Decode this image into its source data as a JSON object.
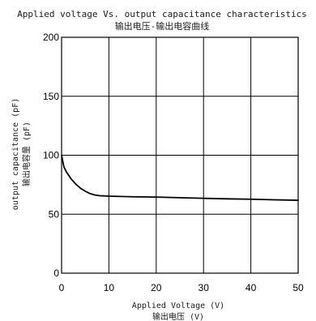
{
  "chart_data": {
    "type": "line",
    "title": "Applied voltage Vs. output capacitance characteristics",
    "subtitle": "输出电压-输出电容曲线",
    "xlabel": "Applied Voltage (V)",
    "xlabel_cn": "输出电压 (V)",
    "ylabel": "output capacitance (pF)",
    "ylabel_cn": "输出电容量 (pF)",
    "xlim": [
      0,
      50
    ],
    "ylim": [
      0,
      200
    ],
    "xticks": [
      0,
      10,
      20,
      30,
      40,
      50
    ],
    "yticks": [
      0,
      50,
      100,
      150,
      200
    ],
    "grid": true,
    "series": [
      {
        "x": [
          0,
          0.5,
          1,
          2,
          3,
          4,
          5,
          6,
          7,
          8,
          9,
          10,
          15,
          20,
          25,
          30,
          35,
          40,
          45,
          50
        ],
        "values": [
          100,
          90,
          86,
          80,
          75.5,
          72,
          69.5,
          67.5,
          66.3,
          65.7,
          65.5,
          65.3,
          64.8,
          64.5,
          64,
          63.5,
          63,
          62.7,
          62.2,
          61.8
        ]
      }
    ],
    "line_color": "#000000",
    "grid_color": "#000000"
  }
}
